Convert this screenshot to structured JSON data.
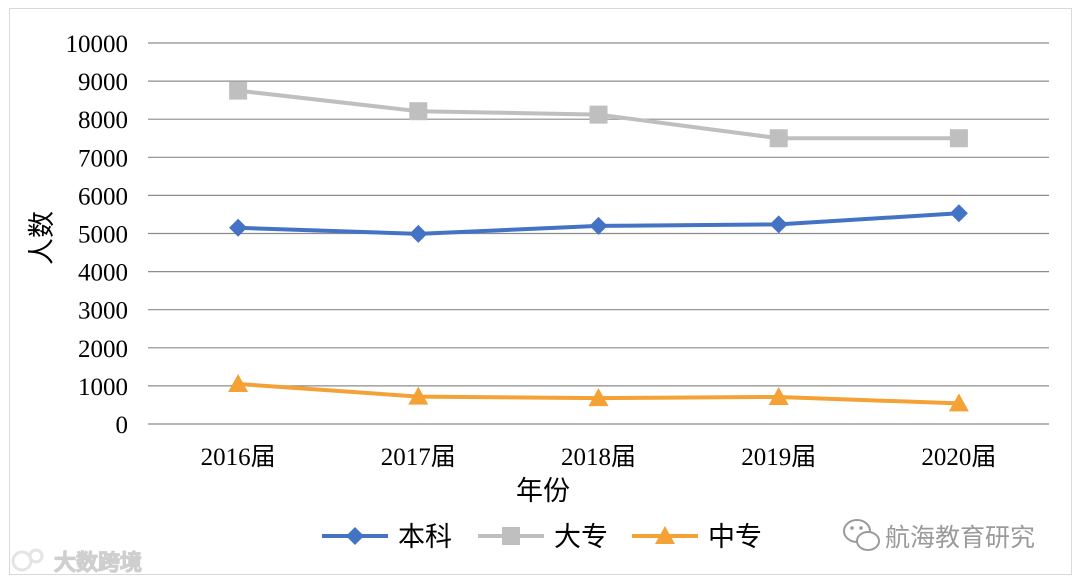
{
  "chart_data": {
    "type": "line",
    "title": "",
    "xlabel": "年份",
    "ylabel": "人数",
    "categories": [
      "2016届",
      "2017届",
      "2018届",
      "2019届",
      "2020届"
    ],
    "ylim": [
      0,
      10000
    ],
    "yticks": [
      0,
      1000,
      2000,
      3000,
      4000,
      5000,
      6000,
      7000,
      8000,
      9000,
      10000
    ],
    "grid": true,
    "legend_position": "bottom",
    "series": [
      {
        "name": "本科",
        "color": "#4472C4",
        "marker": "diamond",
        "values": [
          5150,
          4990,
          5200,
          5240,
          5530
        ]
      },
      {
        "name": "大专",
        "color": "#BFBFBF",
        "marker": "square",
        "values": [
          8750,
          8210,
          8120,
          7500,
          7500
        ]
      },
      {
        "name": "中专",
        "color": "#F4A236",
        "marker": "triangle",
        "values": [
          1050,
          720,
          680,
          710,
          540
        ]
      }
    ]
  },
  "watermarks": {
    "left": "大数跨境",
    "right": "航海教育研究",
    "left_icon": "logo-icon",
    "right_icon": "wechat-icon"
  }
}
